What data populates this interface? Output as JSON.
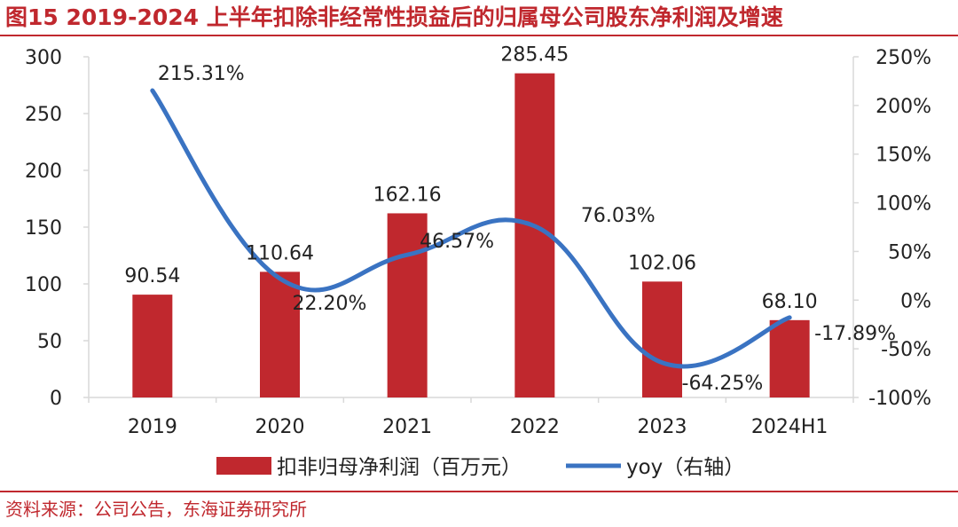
{
  "title": "图15  2019-2024 上半年扣除非经常性损益后的归属母公司股东净利润及增速",
  "source": "资料来源：公司公告，东海证券研究所",
  "colors": {
    "bar": "#c0282e",
    "line": "#3a73c2",
    "title": "#c0282e",
    "axis": "#d9d9d9"
  },
  "chart_data": {
    "type": "bar+line",
    "categories": [
      "2019",
      "2020",
      "2021",
      "2022",
      "2023",
      "2024H1"
    ],
    "series": [
      {
        "name": "扣非归母净利润（百万元）",
        "type": "bar",
        "axis": "left",
        "values": [
          90.54,
          110.64,
          162.16,
          285.45,
          102.06,
          68.1
        ],
        "labels": [
          "90.54",
          "110.64",
          "162.16",
          "285.45",
          "102.06",
          "68.10"
        ]
      },
      {
        "name": "yoy（右轴）",
        "type": "line",
        "axis": "right",
        "smooth": true,
        "values": [
          215.31,
          22.2,
          46.57,
          76.03,
          -64.25,
          -17.89
        ],
        "labels": [
          "215.31%",
          "22.20%",
          "46.57%",
          "76.03%",
          "-64.25%",
          "-17.89%"
        ]
      }
    ],
    "y_left": {
      "range": [
        0,
        300
      ],
      "ticks": [
        "0",
        "50",
        "100",
        "150",
        "200",
        "250",
        "300"
      ]
    },
    "y_right": {
      "range": [
        -100,
        250
      ],
      "ticks": [
        "-100%",
        "-50%",
        "0%",
        "50%",
        "100%",
        "150%",
        "200%",
        "250%"
      ]
    },
    "grid": false,
    "legend": "bottom"
  }
}
